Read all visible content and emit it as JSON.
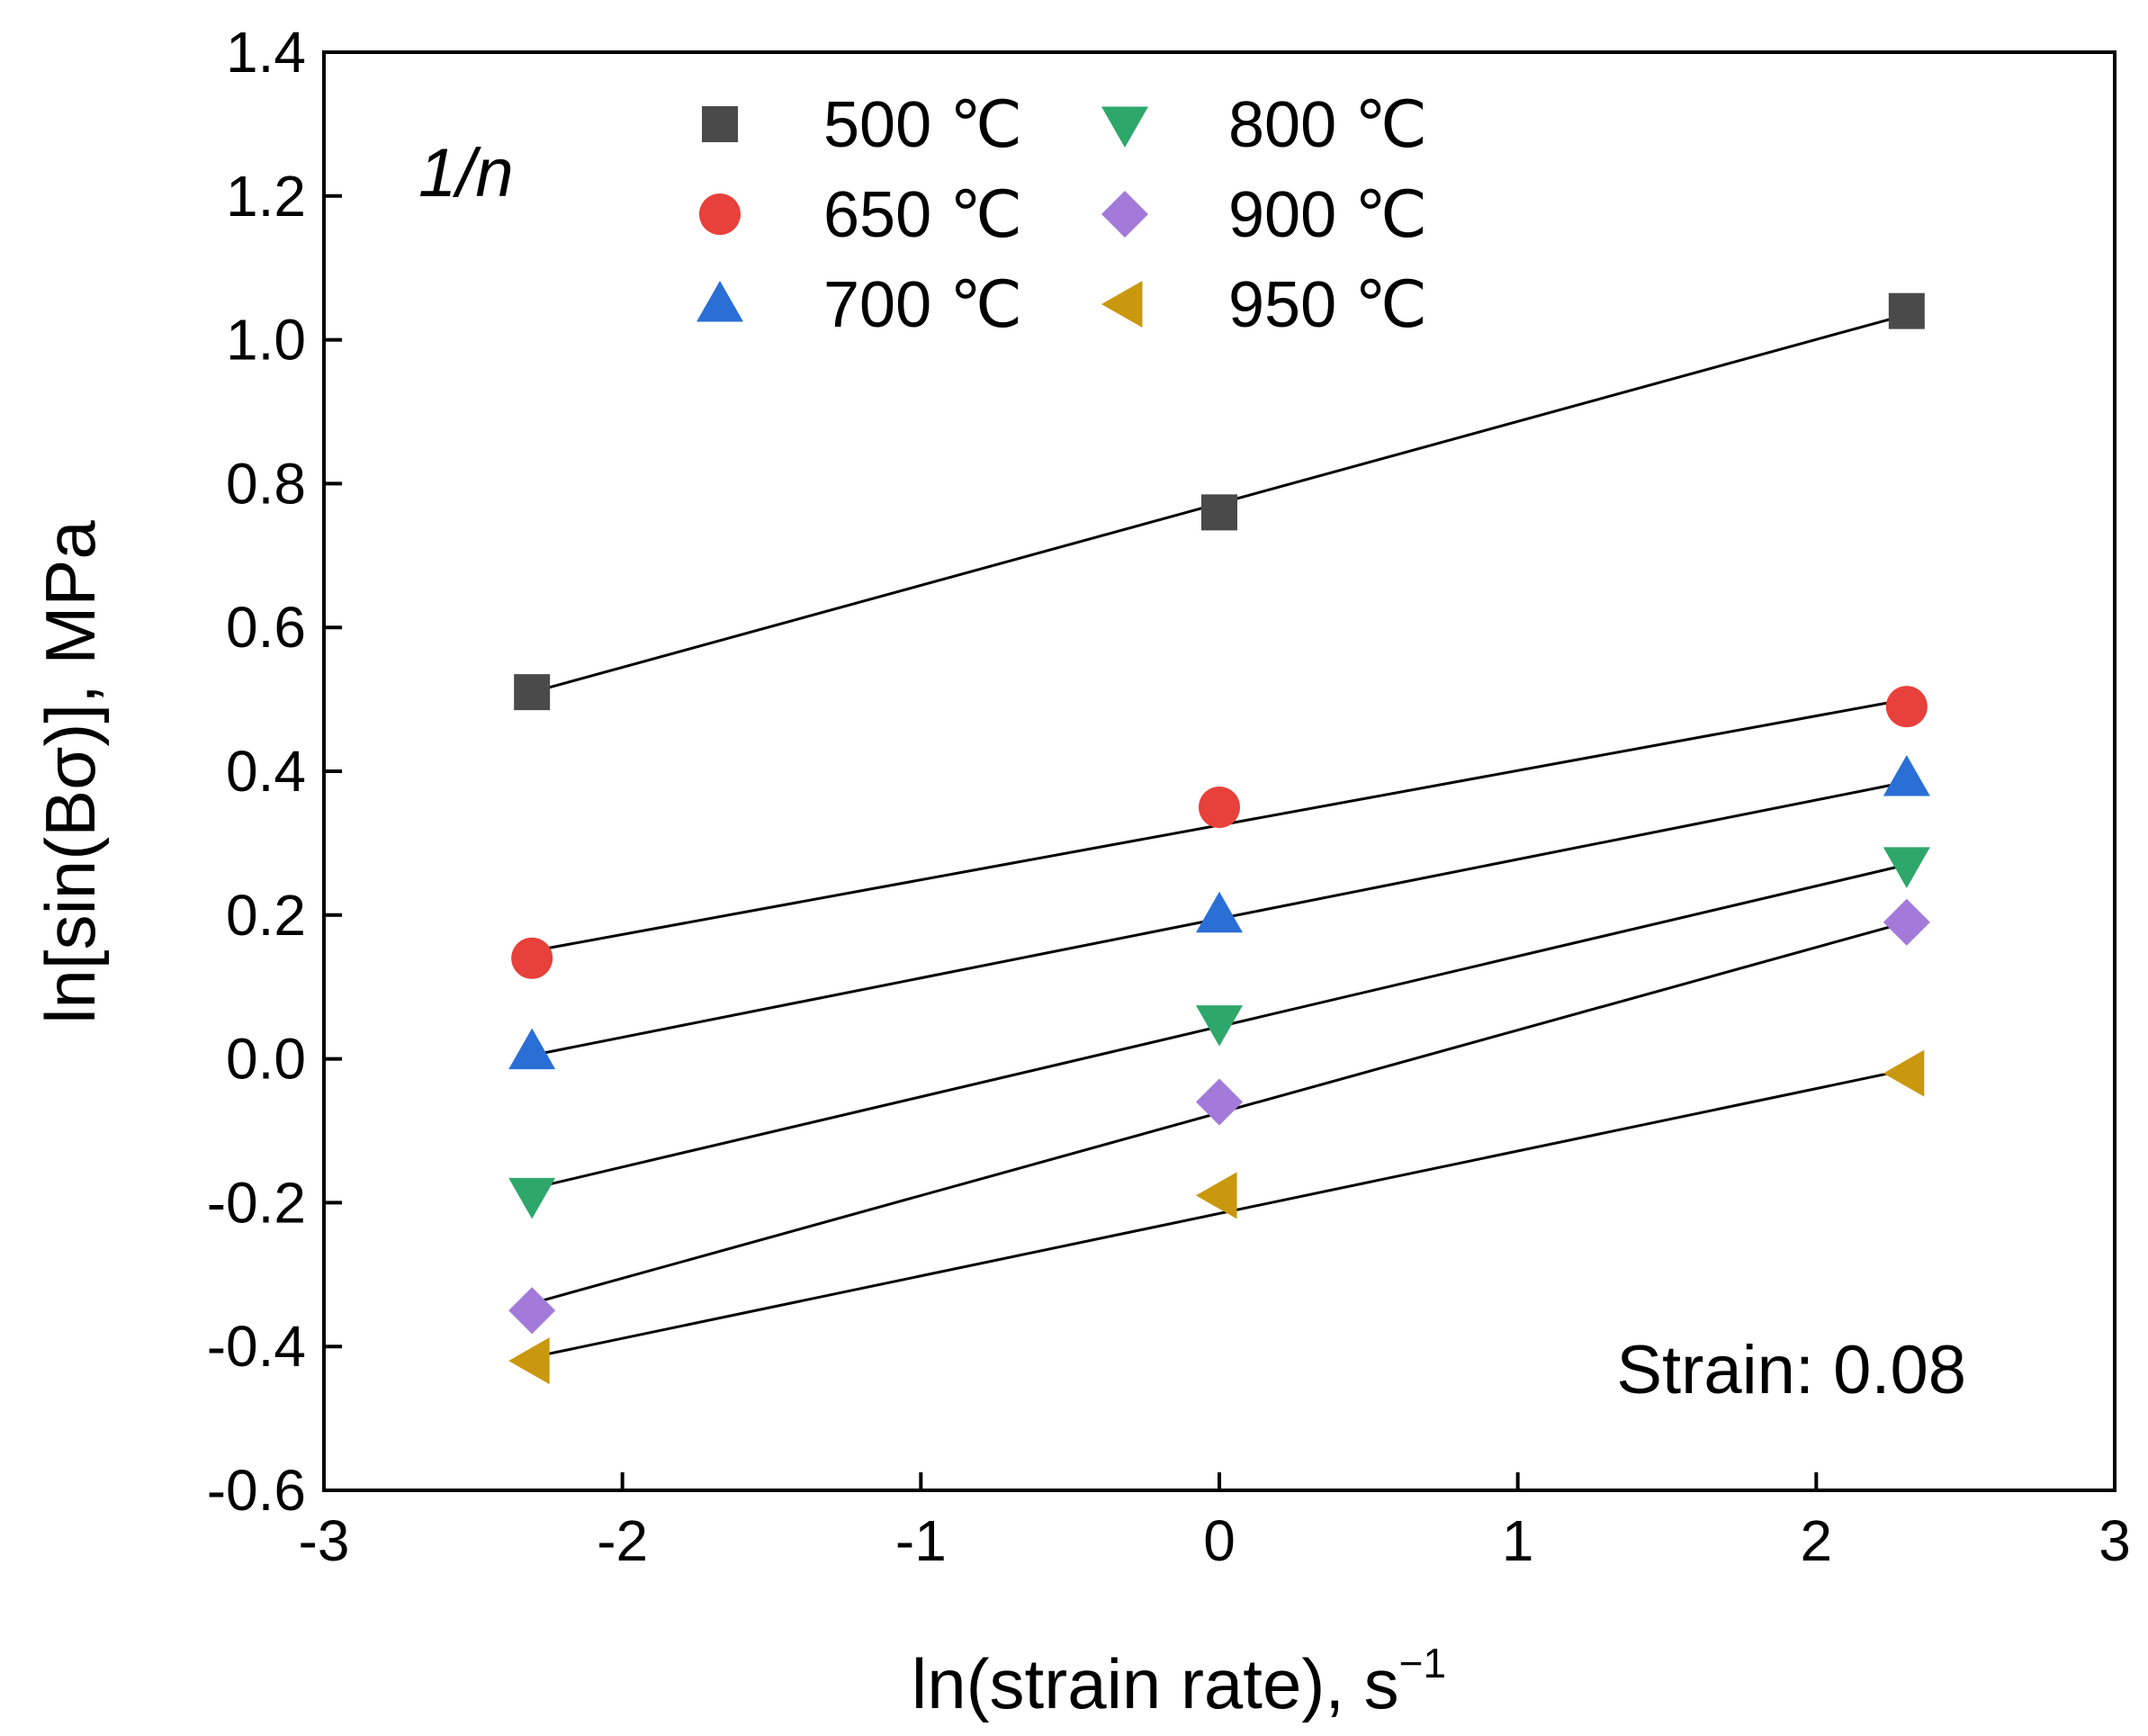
{
  "chart_data": {
    "type": "scatter",
    "title": "",
    "xlabel": "ln(strain rate), s",
    "xlabel_sup": "−1",
    "ylabel": "ln[sin(Bσ)], MPa",
    "xlim": [
      -3,
      3
    ],
    "ylim": [
      -0.6,
      1.4
    ],
    "x_ticks": [
      -3,
      -2,
      -1,
      0,
      1,
      2,
      3
    ],
    "x_tick_labels": [
      "-3",
      "-2",
      "-1",
      "0",
      "1",
      "2",
      "3"
    ],
    "y_ticks": [
      -0.6,
      -0.4,
      -0.2,
      0.0,
      0.2,
      0.4,
      0.6,
      0.8,
      1.0,
      1.2,
      1.4
    ],
    "y_tick_labels": [
      "-0.6",
      "-0.4",
      "-0.2",
      "0.0",
      "0.2",
      "0.4",
      "0.6",
      "0.8",
      "1.0",
      "1.2",
      "1.4"
    ],
    "grid": false,
    "legend_position": "top",
    "annotations": {
      "top_left": "1/n",
      "bottom_right": "Strain: 0.08"
    },
    "x": [
      -2.303,
      0,
      2.303
    ],
    "series": [
      {
        "name": "500 ℃",
        "marker": "square",
        "color": "#4a4a4a",
        "values": [
          0.51,
          0.76,
          1.04
        ],
        "fit": [
          0.51,
          0.775,
          1.035
        ]
      },
      {
        "name": "650 ℃",
        "marker": "circle",
        "color": "#e8403a",
        "values": [
          0.14,
          0.35,
          0.49
        ],
        "fit": [
          0.15,
          0.325,
          0.5
        ]
      },
      {
        "name": "700 ℃",
        "marker": "triangle-up",
        "color": "#2a6fd6",
        "values": [
          0.01,
          0.2,
          0.39
        ],
        "fit": [
          0.005,
          0.195,
          0.385
        ]
      },
      {
        "name": "800 ℃",
        "marker": "triangle-down",
        "color": "#2ea86a",
        "values": [
          -0.19,
          0.05,
          0.27
        ],
        "fit": [
          -0.18,
          0.045,
          0.27
        ]
      },
      {
        "name": "900 ℃",
        "marker": "diamond",
        "color": "#a37ad9",
        "values": [
          -0.35,
          -0.06,
          0.19
        ],
        "fit": [
          -0.34,
          -0.075,
          0.19
        ]
      },
      {
        "name": "950 ℃",
        "marker": "triangle-left",
        "color": "#c9980e",
        "values": [
          -0.42,
          -0.19,
          -0.02
        ],
        "fit": [
          -0.415,
          -0.205,
          -0.015
        ]
      }
    ]
  }
}
